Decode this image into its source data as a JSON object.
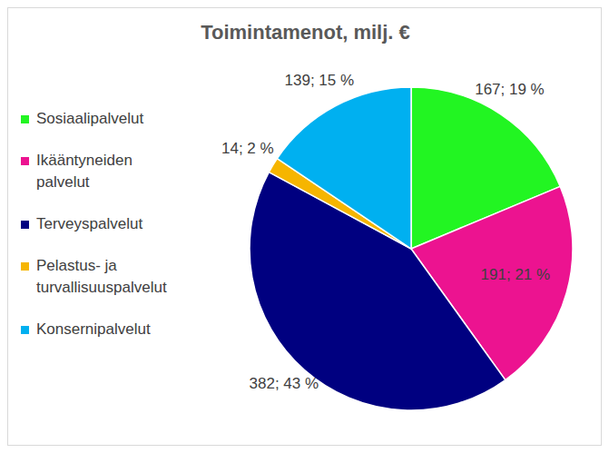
{
  "chart_data": {
    "type": "pie",
    "title": "Toimintamenot, milj. €",
    "categories": [
      "Sosiaalipalvelut",
      "Ikääntyneiden palvelut",
      "Terveyspalvelut",
      "Pelastus- ja turvallisuuspalvelut",
      "Konsernipalvelut"
    ],
    "values": [
      167,
      191,
      382,
      14,
      139
    ],
    "value_labels": [
      "167; 19 %",
      "191; 21 %",
      "382; 43 %",
      "14; 2 %",
      "139; 15 %"
    ],
    "colors": [
      "#22f522",
      "#ec1390",
      "#000080",
      "#f6b500",
      "#00b0f0"
    ],
    "data_labels": true,
    "legend": "left"
  }
}
